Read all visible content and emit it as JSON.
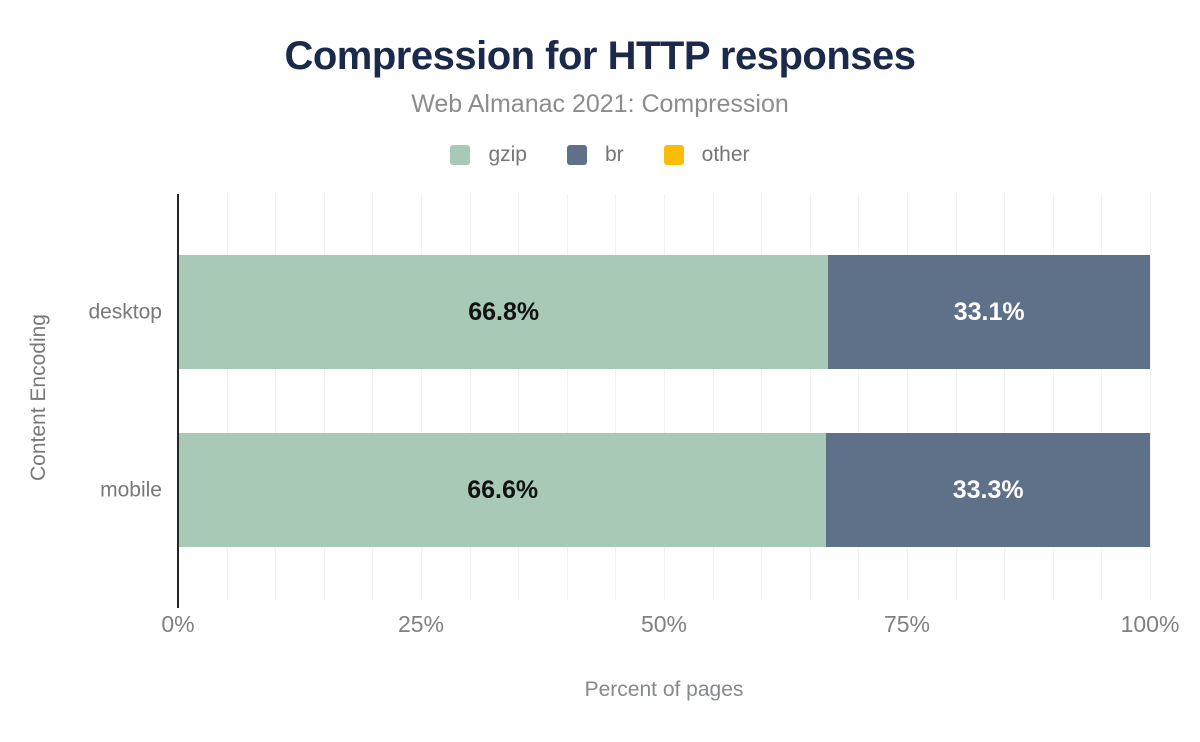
{
  "header": {
    "title": "Compression for HTTP responses",
    "subtitle": "Web Almanac 2021: Compression"
  },
  "chart_data": {
    "type": "bar",
    "orientation": "horizontal",
    "stacked": true,
    "title": "Compression for HTTP responses",
    "subtitle": "Web Almanac 2021: Compression",
    "categories": [
      "desktop",
      "mobile"
    ],
    "series": [
      {
        "name": "gzip",
        "color": "#a7c9b6",
        "label_color": "#121212",
        "values": [
          66.8,
          66.6
        ]
      },
      {
        "name": "br",
        "color": "#5f7189",
        "label_color": "#ffffff",
        "values": [
          33.1,
          33.3
        ]
      },
      {
        "name": "other",
        "color": "#fbbc04",
        "label_color": "#121212",
        "values": [
          0,
          0
        ]
      }
    ],
    "xlabel": "Percent of pages",
    "ylabel": "Content Encoding",
    "xlim": [
      0,
      100
    ],
    "x_ticks": [
      {
        "value": 0,
        "label": "0%"
      },
      {
        "value": 25,
        "label": "25%"
      },
      {
        "value": 50,
        "label": "50%"
      },
      {
        "value": 75,
        "label": "75%"
      },
      {
        "value": 100,
        "label": "100%"
      }
    ],
    "gridline_step": 5,
    "grid": true,
    "legend_position": "top",
    "value_suffix": "%",
    "value_decimals": 1
  },
  "colors": {
    "title": "#1b2a4a",
    "subtitle": "#8c8c8c",
    "axis_line": "#262626",
    "gridline": "#f1f2f2",
    "tick_text": "#7e8184"
  }
}
